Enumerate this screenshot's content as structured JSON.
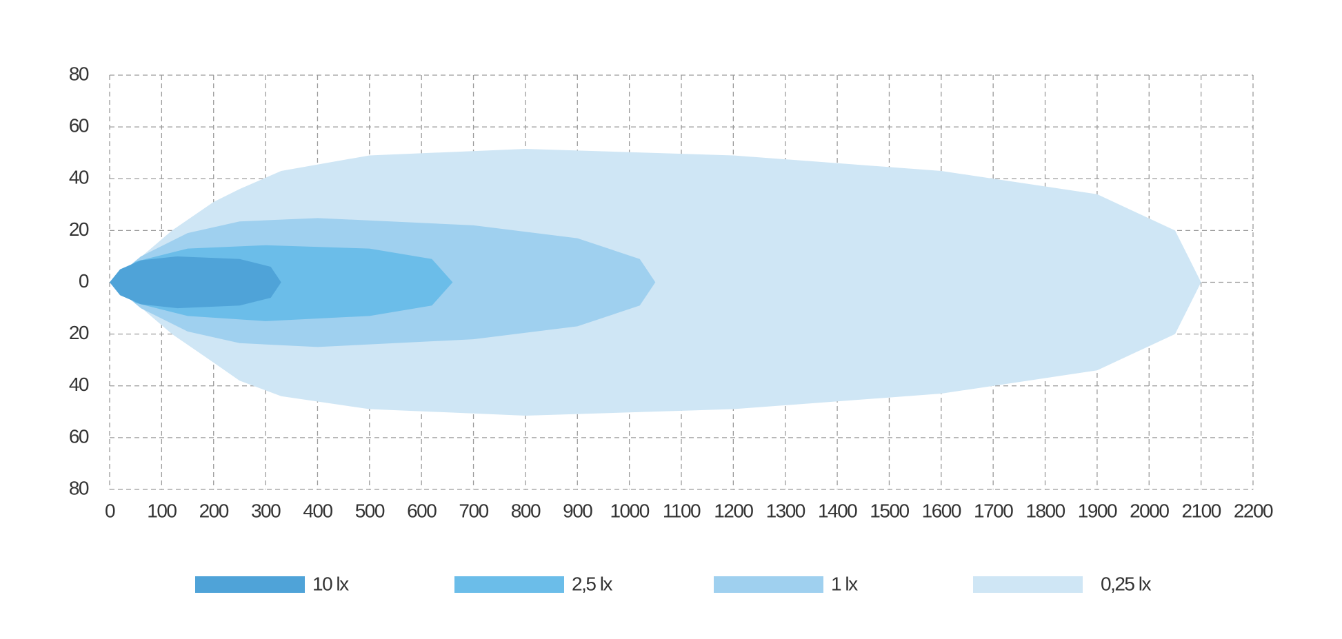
{
  "chart_data": {
    "type": "area",
    "series": [
      {
        "name": "10 lx",
        "color": "#4fa3d8",
        "x": [
          0,
          20,
          60,
          130,
          250,
          310,
          330,
          310,
          250,
          130,
          60,
          20
        ],
        "y": [
          0,
          5,
          8.5,
          10,
          9,
          6,
          0,
          -6,
          -9,
          -10,
          -8.5,
          -5
        ]
      },
      {
        "name": "2,5 lx",
        "color": "#6bbde9",
        "x": [
          0,
          50,
          150,
          300,
          500,
          620,
          660,
          620,
          500,
          300,
          150,
          50
        ],
        "y": [
          0,
          8,
          13,
          14.3,
          13,
          9,
          0,
          -9,
          -13,
          -15,
          -13,
          -8
        ]
      },
      {
        "name": "1 lx",
        "color": "#9fd0ef",
        "x": [
          0,
          60,
          150,
          250,
          400,
          700,
          900,
          1020,
          1050,
          1020,
          900,
          700,
          400,
          250,
          150,
          60
        ],
        "y": [
          0,
          10,
          19,
          23.5,
          24.8,
          22,
          17,
          9,
          0,
          -9,
          -17,
          -22,
          -25,
          -23.5,
          -19,
          -10
        ]
      },
      {
        "name": "0,25 lx",
        "color": "#cfe6f5",
        "x": [
          0,
          50,
          120,
          200,
          250,
          330,
          500,
          800,
          1200,
          1600,
          1900,
          2050,
          2100,
          2050,
          1900,
          1600,
          1200,
          800,
          500,
          330,
          250,
          200,
          120,
          50
        ],
        "y": [
          0,
          8,
          20,
          31,
          36,
          43,
          49,
          51.5,
          49,
          43,
          34,
          20,
          0,
          -20,
          -34,
          -43,
          -49,
          -51.5,
          -49,
          -44,
          -38,
          -31,
          -20,
          -8
        ]
      }
    ],
    "xlim": [
      0,
      2200
    ],
    "xticks": [
      0,
      100,
      200,
      300,
      400,
      500,
      600,
      700,
      800,
      900,
      1000,
      1100,
      1200,
      1300,
      1400,
      1500,
      1600,
      1700,
      1800,
      1900,
      2000,
      2100,
      2200
    ],
    "ylim": [
      -80,
      80
    ],
    "yticks": [
      {
        "value": -80,
        "label": "80"
      },
      {
        "value": -60,
        "label": "60"
      },
      {
        "value": -40,
        "label": "40"
      },
      {
        "value": -20,
        "label": "20"
      },
      0,
      20,
      40,
      60,
      80
    ],
    "grid": true
  }
}
